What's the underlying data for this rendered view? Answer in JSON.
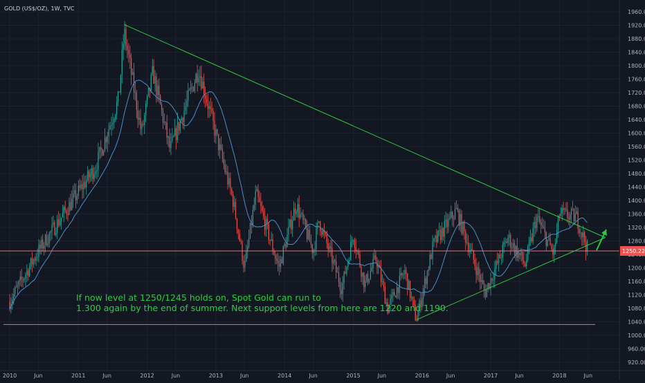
{
  "chart_data": {
    "type": "candlestick",
    "title": "GOLD (US$/OZ), 1W, TVC",
    "x_tick_labels": [
      "2010",
      "Jun",
      "2011",
      "Jun",
      "2012",
      "Jun",
      "2013",
      "Jun",
      "2014",
      "Jun",
      "2015",
      "Jun",
      "2016",
      "Jun",
      "2017",
      "Jun",
      "2018",
      "Jun"
    ],
    "y_tick_labels": [
      "920.00",
      "960.00",
      "1000.00",
      "1040.00",
      "1080.00",
      "1120.00",
      "1160.00",
      "1200.00",
      "1240.00",
      "1280.00",
      "1320.00",
      "1360.00",
      "1400.00",
      "1440.00",
      "1480.00",
      "1520.00",
      "1560.00",
      "1600.00",
      "1640.00",
      "1680.00",
      "1720.00",
      "1760.00",
      "1800.00",
      "1840.00",
      "1880.00",
      "1920.00",
      "1960.00"
    ],
    "ylim": [
      900,
      1980
    ],
    "price_label": "1250.22",
    "price_line": 1250.22,
    "support_line": 1032,
    "annotation": [
      "If now level at 1250/1245 holds on, Spot Gold can run to",
      "1.300 again by the end of summer. Next support levels from here are 1220 and 1190."
    ],
    "trendlines": [
      {
        "name": "upper",
        "from": [
          "2011-09",
          1922
        ],
        "to": [
          "2018-09",
          1290
        ]
      },
      {
        "name": "lower",
        "from": [
          "2015-12",
          1046
        ],
        "to": [
          "2018-09",
          1290
        ]
      }
    ],
    "key_levels": [
      [
        "2010-01",
        1100
      ],
      [
        "2010-06",
        1250
      ],
      [
        "2010-12",
        1400
      ],
      [
        "2011-04",
        1500
      ],
      [
        "2011-08",
        1700
      ],
      [
        "2011-09",
        1900
      ],
      [
        "2011-12",
        1600
      ],
      [
        "2012-02",
        1780
      ],
      [
        "2012-05",
        1550
      ],
      [
        "2012-10",
        1790
      ],
      [
        "2012-12",
        1660
      ],
      [
        "2013-04",
        1400
      ],
      [
        "2013-06",
        1200
      ],
      [
        "2013-08",
        1420
      ],
      [
        "2013-12",
        1200
      ],
      [
        "2014-03",
        1390
      ],
      [
        "2014-06",
        1250
      ],
      [
        "2014-07",
        1340
      ],
      [
        "2014-11",
        1140
      ],
      [
        "2015-01",
        1300
      ],
      [
        "2015-03",
        1150
      ],
      [
        "2015-05",
        1230
      ],
      [
        "2015-07",
        1080
      ],
      [
        "2015-10",
        1190
      ],
      [
        "2015-12",
        1046
      ],
      [
        "2016-03",
        1270
      ],
      [
        "2016-07",
        1370
      ],
      [
        "2016-12",
        1125
      ],
      [
        "2017-04",
        1290
      ],
      [
        "2017-07",
        1210
      ],
      [
        "2017-09",
        1350
      ],
      [
        "2017-12",
        1240
      ],
      [
        "2018-01",
        1360
      ],
      [
        "2018-04",
        1350
      ],
      [
        "2018-06",
        1250
      ]
    ],
    "colors": {
      "background": "#131722",
      "up_candle": "#26a69a",
      "down_candle": "#ef5350",
      "trendline": "#2ecc40",
      "price_line": "#e57373",
      "support_line": "#e0803a",
      "moving_average": "#4a90c8",
      "price_badge": "#ef5350",
      "arrow": "#2ecc40"
    }
  }
}
